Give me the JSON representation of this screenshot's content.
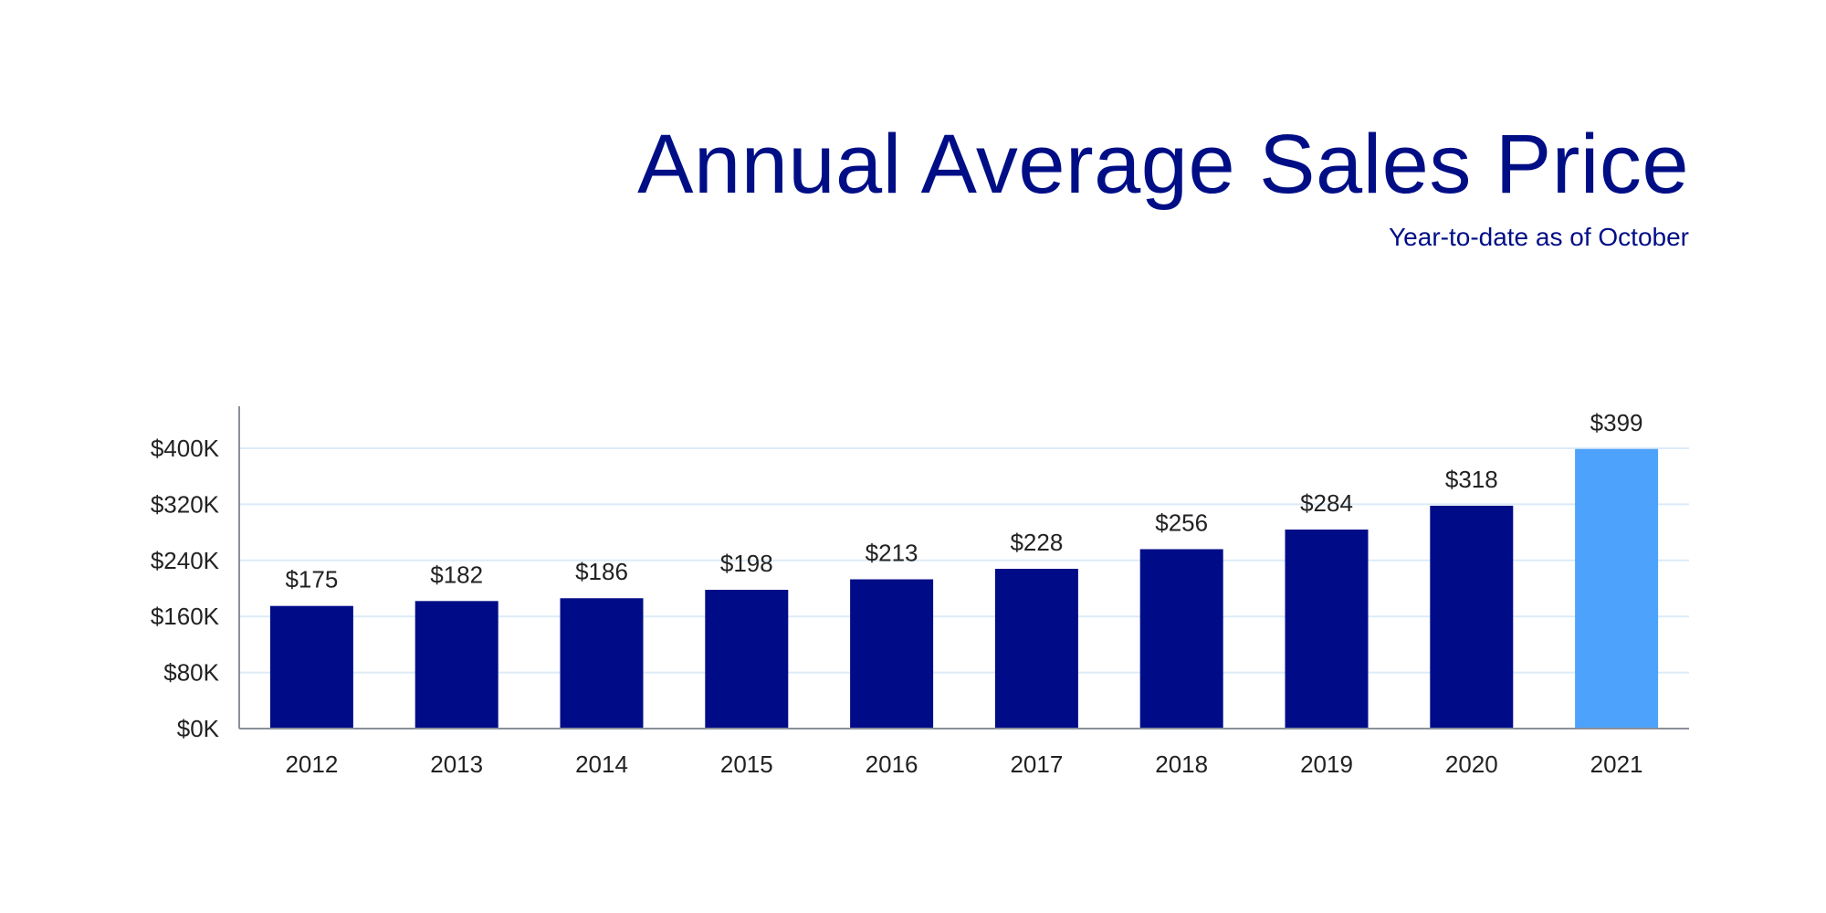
{
  "chart_data": {
    "type": "bar",
    "title": "Annual Average Sales Price",
    "subtitle": "Year-to-date as of October",
    "categories": [
      "2012",
      "2013",
      "2014",
      "2015",
      "2016",
      "2017",
      "2018",
      "2019",
      "2020",
      "2021"
    ],
    "values": [
      175,
      182,
      186,
      198,
      213,
      228,
      256,
      284,
      318,
      399
    ],
    "value_unit": "thousands USD",
    "data_labels": [
      "$175",
      "$182",
      "$186",
      "$198",
      "$213",
      "$228",
      "$256",
      "$284",
      "$318",
      "$399"
    ],
    "yticks": [
      0,
      80,
      160,
      240,
      320,
      400
    ],
    "ytick_labels": [
      "$0K",
      "$80K",
      "$160K",
      "$240K",
      "$320K",
      "$400K"
    ],
    "ylim": [
      0,
      460
    ],
    "xlabel": "",
    "ylabel": "",
    "grid": true,
    "legend": "none",
    "colors": {
      "bar": "#000c87",
      "highlight": "#4da3fb",
      "title": "#000e86",
      "grid": "#dcebf8",
      "axis": "#8a9099"
    },
    "highlight_index": 9
  }
}
